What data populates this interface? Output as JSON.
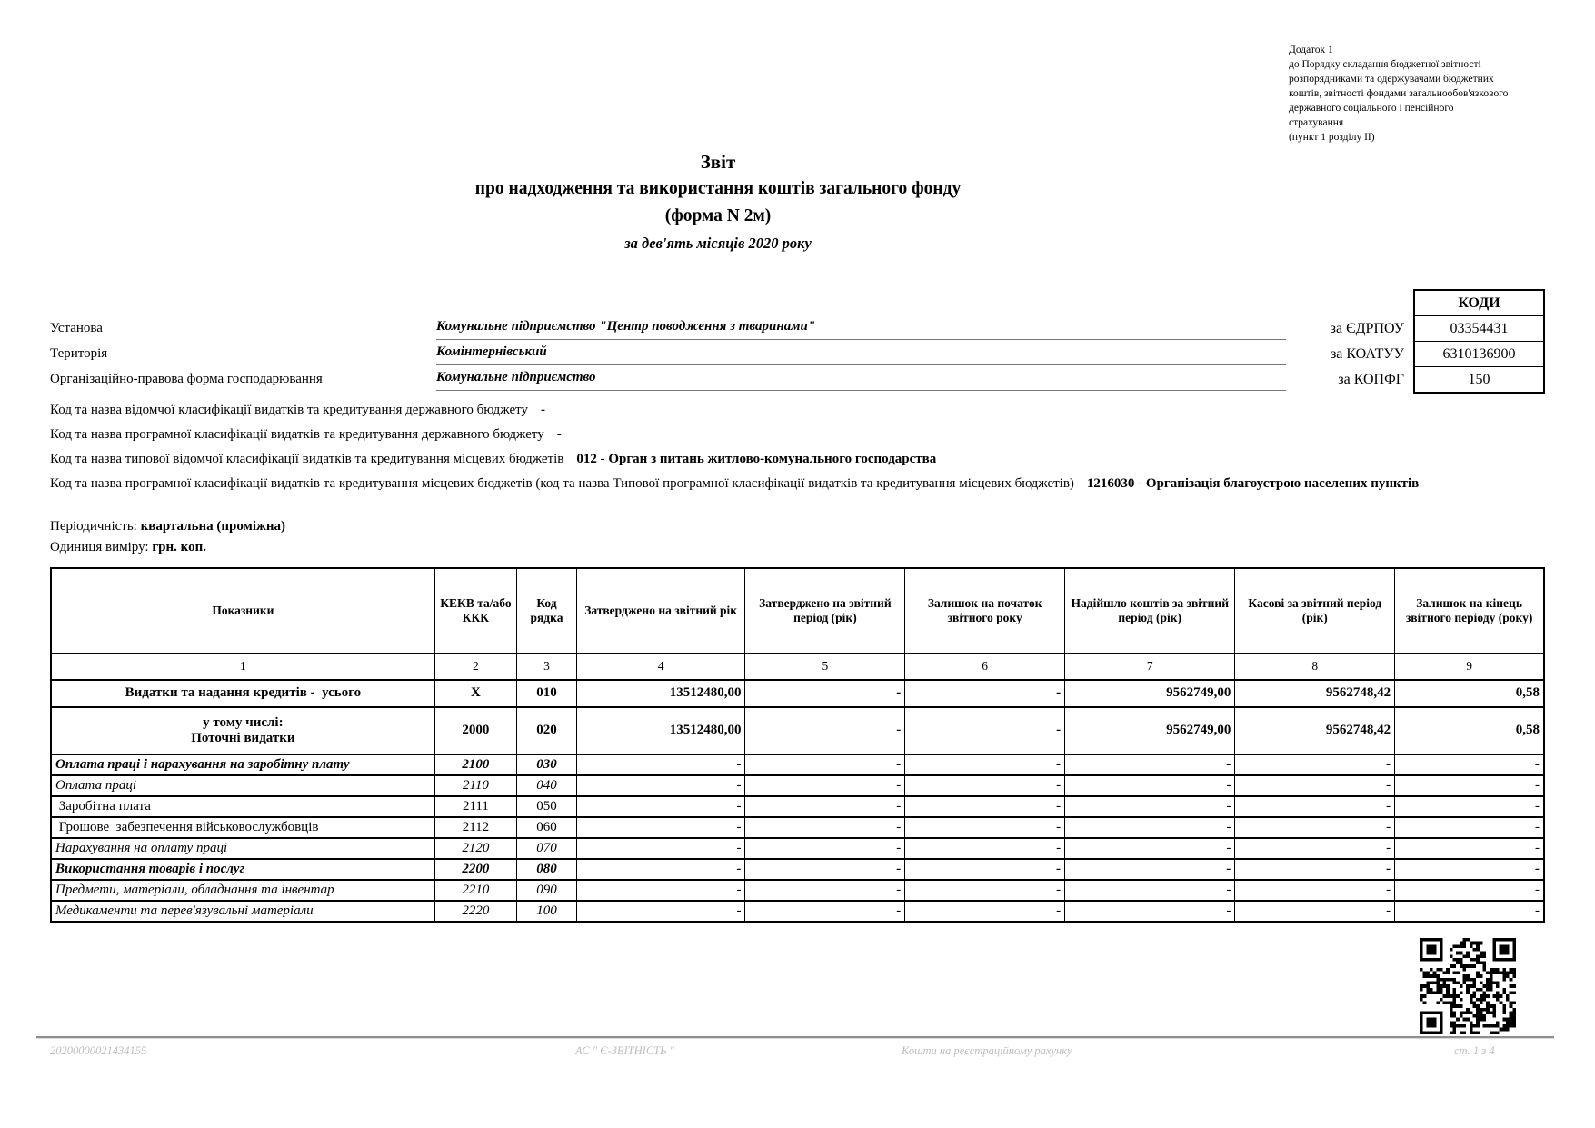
{
  "page": {
    "annex": "Додаток 1\nдо Порядку складання бюджетної звітності\nрозпорядниками та одержувачами бюджетних\nкоштів, звітності фондами загальнообов'язкового\nдержавного соціального і пенсійного\nстрахування\n(пункт 1 розділу II)",
    "title_main": "Звіт",
    "title_sub": "про надходження та використання коштів загального фонду",
    "title_form": "(форма N 2м)",
    "title_period": "за дев'ять місяців 2020 року"
  },
  "codes": {
    "header": "КОДИ",
    "rows": [
      {
        "label": "за ЄДРПОУ",
        "value": "03354431"
      },
      {
        "label": "за КОАТУУ",
        "value": "6310136900"
      },
      {
        "label": "за КОПФГ",
        "value": "150"
      }
    ]
  },
  "info": {
    "rows": [
      {
        "label": "Установа",
        "value": "Комунальне підприємство \"Центр поводження з тваринами\""
      },
      {
        "label": "Територія",
        "value": "Комінтернівський"
      },
      {
        "label": "Організаційно-правова  форма господарювання",
        "value": "Комунальне підприємство"
      }
    ],
    "classification": [
      {
        "text": "Код та назва відомчої класифікації видатків та кредитування державного бюджету",
        "code": "-",
        "name": ""
      },
      {
        "text": "Код та назва програмної класифікації видатків та кредитування державного бюджету",
        "code": "-",
        "name": ""
      },
      {
        "text": "Код та назва типової відомчої класифікації видатків та кредитування місцевих бюджетів",
        "code": "012",
        "name": "Орган з питань житлово-комунального господарства"
      },
      {
        "text": "Код та назва програмної класифікації видатків та кредитування місцевих бюджетів (код та назва Типової програмної класифікації видатків та кредитування місцевих бюджетів)",
        "code": "1216030",
        "name": "Організація благоустрою населених пунктів"
      }
    ],
    "periodicity_label": "Періодичність:",
    "periodicity_value": "квартальна (проміжна)",
    "unit_label": "Одиниця виміру:",
    "unit_value": "грн. коп."
  },
  "table": {
    "headers": [
      "Показники",
      "КЕКВ та/або ККК",
      "Код рядка",
      "Затверджено на звітний рік",
      "Затверджено на звітний період (рік)",
      "Залишок на початок звітного року",
      "Надійшло коштів за звітний період (рік)",
      "Касові за звітний період (рік)",
      "Залишок на кінець звітного періоду (року)"
    ],
    "column_numbers": [
      "1",
      "2",
      "3",
      "4",
      "5",
      "6",
      "7",
      "8",
      "9"
    ],
    "rows": [
      {
        "label": "Видатки та надання кредитів -  усього",
        "kekv": "X",
        "code": "010",
        "values": [
          "13512480,00",
          "-",
          "-",
          "9562749,00",
          "9562748,42",
          "0,58"
        ],
        "style": "bold",
        "align": "center"
      },
      {
        "label": "у тому числі:\nПоточні видатки",
        "kekv": "2000",
        "code": "020",
        "values": [
          "13512480,00",
          "-",
          "-",
          "9562749,00",
          "9562748,42",
          "0,58"
        ],
        "style": "bold",
        "align": "center"
      },
      {
        "label": "Оплата праці і нарахування на заробітну плату",
        "kekv": "2100",
        "code": "030",
        "values": [
          "-",
          "-",
          "-",
          "-",
          "-",
          "-"
        ],
        "style": "bold-italic",
        "align": "left"
      },
      {
        "label": "Оплата праці",
        "kekv": "2110",
        "code": "040",
        "values": [
          "-",
          "-",
          "-",
          "-",
          "-",
          "-"
        ],
        "style": "italic",
        "align": "left"
      },
      {
        "label": " Заробітна плата",
        "kekv": "2111",
        "code": "050",
        "values": [
          "-",
          "-",
          "-",
          "-",
          "-",
          "-"
        ],
        "style": "normal",
        "align": "left"
      },
      {
        "label": " Грошове  забезпечення військовослужбовців",
        "kekv": "2112",
        "code": "060",
        "values": [
          "-",
          "-",
          "-",
          "-",
          "-",
          "-"
        ],
        "style": "normal",
        "align": "left"
      },
      {
        "label": "Нарахування на оплату праці",
        "kekv": "2120",
        "code": "070",
        "values": [
          "-",
          "-",
          "-",
          "-",
          "-",
          "-"
        ],
        "style": "italic",
        "align": "left"
      },
      {
        "label": "Використання товарів і послуг",
        "kekv": "2200",
        "code": "080",
        "values": [
          "-",
          "-",
          "-",
          "-",
          "-",
          "-"
        ],
        "style": "bold-italic",
        "align": "left"
      },
      {
        "label": "Предмети, матеріали, обладнання та інвентар",
        "kekv": "2210",
        "code": "090",
        "values": [
          "-",
          "-",
          "-",
          "-",
          "-",
          "-"
        ],
        "style": "italic",
        "align": "left"
      },
      {
        "label": "Медикаменти та перев'язувальні матеріали",
        "kekv": "2220",
        "code": "100",
        "values": [
          "-",
          "-",
          "-",
          "-",
          "-",
          "-"
        ],
        "style": "italic",
        "align": "left"
      }
    ]
  },
  "footer": {
    "serial": "20200000021434155",
    "system": "АС \" Є-ЗВІТНІСТЬ \"",
    "account": "Кошти на реєстраційному рахунку",
    "page": "ст. 1 з 4"
  },
  "colors": {
    "text": "#000000",
    "footer_text": "#bdbdbd",
    "rule": "#8f8f8f"
  }
}
